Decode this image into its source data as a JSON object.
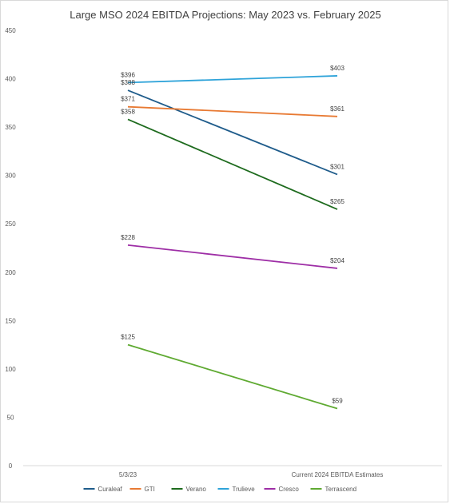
{
  "chart_data": {
    "type": "line",
    "title": "Large MSO 2024 EBITDA Projections: May 2023 vs. February 2025",
    "xlabel": "",
    "ylabel": "",
    "categories": [
      "5/3/23",
      "Current 2024 EBITDA Estimates"
    ],
    "ylim": [
      0,
      450
    ],
    "yticks": [
      0,
      50,
      100,
      150,
      200,
      250,
      300,
      350,
      400,
      450
    ],
    "grid": false,
    "legend_position": "bottom",
    "series": [
      {
        "name": "Curaleaf",
        "values": [
          388,
          301
        ],
        "labels": [
          "$388",
          "$301"
        ],
        "color": "#1f5c8b"
      },
      {
        "name": "GTI",
        "values": [
          371,
          361
        ],
        "labels": [
          "$371",
          "$361"
        ],
        "color": "#e87a33"
      },
      {
        "name": "Verano",
        "values": [
          358,
          265
        ],
        "labels": [
          "$358",
          "$265"
        ],
        "color": "#1e6b1e"
      },
      {
        "name": "Trulieve",
        "values": [
          396,
          403
        ],
        "labels": [
          "$396",
          "$403"
        ],
        "color": "#2ea3d9"
      },
      {
        "name": "Cresco",
        "values": [
          228,
          204
        ],
        "labels": [
          "$228",
          "$204"
        ],
        "color": "#9e2ea6"
      },
      {
        "name": "Terrascend",
        "values": [
          125,
          59
        ],
        "labels": [
          "$125",
          "$59"
        ],
        "color": "#5faa32"
      }
    ]
  }
}
